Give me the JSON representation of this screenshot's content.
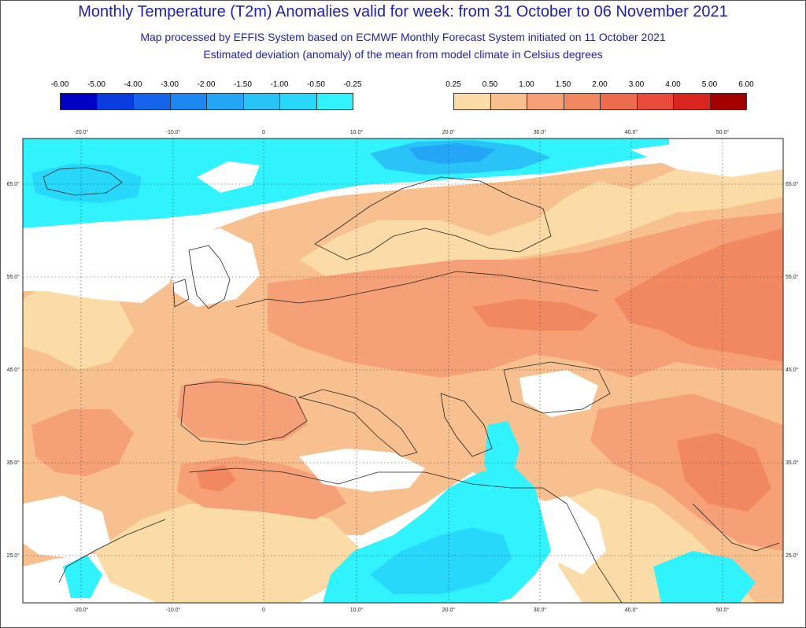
{
  "header": {
    "title": "Monthly Temperature (T2m) Anomalies valid for week: from 31 October to 06 November 2021",
    "subtitle_line1": "Map processed by EFFIS System based on ECMWF Monthly Forecast System initiated on 11 October 2021",
    "subtitle_line2": "Estimated deviation (anomaly) of the mean from model climate in Celsius degrees"
  },
  "legend": {
    "cold": {
      "labels": [
        "-6.00",
        "-5.00",
        "-4.00",
        "-3.00",
        "-2.00",
        "-1.50",
        "-1.00",
        "-0.50",
        "-0.25"
      ],
      "colors": [
        "#0000c4",
        "#0a3ddf",
        "#1664ec",
        "#1e88f2",
        "#23a6f5",
        "#29c3f8",
        "#27d8fb",
        "#31f3ff"
      ]
    },
    "warm": {
      "labels": [
        "0.25",
        "0.50",
        "1.00",
        "1.50",
        "2.00",
        "3.00",
        "4.00",
        "5.00",
        "6.00"
      ],
      "colors": [
        "#fcdca6",
        "#f8c08e",
        "#f5a076",
        "#f18860",
        "#ef6b4e",
        "#ea4c3c",
        "#d82520",
        "#a40000"
      ]
    }
  },
  "map": {
    "lon_ticks": [
      "-20.0°",
      "-10.0°",
      "0",
      "10.0°",
      "20.0°",
      "30.0°",
      "40.0°",
      "50.0°"
    ],
    "lat_ticks": [
      "65.0°",
      "55.0°",
      "45.0°",
      "35.0°",
      "25.0°"
    ],
    "colors": {
      "land_outline": "#222222",
      "grid": "#333333",
      "neutral": "#ffffff"
    }
  }
}
